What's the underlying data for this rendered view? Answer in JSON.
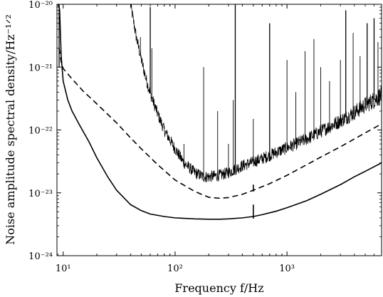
{
  "chart_data": {
    "type": "line",
    "title": "",
    "xlabel": "Frequency f/Hz",
    "ylabel": "Noise amplitude spectral density/Hz⁻¹ᐟ²",
    "xscale": "log",
    "yscale": "log",
    "xlim": [
      8.8,
      7000
    ],
    "ylim": [
      1e-24,
      1e-20
    ],
    "grid": false,
    "legend": "none",
    "x_ticks": [
      {
        "value": 10,
        "label": "10¹"
      },
      {
        "value": 100,
        "label": "10²"
      },
      {
        "value": 1000,
        "label": "10³"
      }
    ],
    "y_ticks": [
      {
        "value": 1e-24,
        "label": "10⁻²⁴"
      },
      {
        "value": 1e-23,
        "label": "10⁻²³"
      },
      {
        "value": 1e-22,
        "label": "10⁻²²"
      },
      {
        "value": 1e-21,
        "label": "10⁻²¹"
      },
      {
        "value": 1e-20,
        "label": "10⁻²⁰"
      }
    ],
    "series": [
      {
        "style": "solid",
        "color": "#000000",
        "x": [
          9.0,
          9.3,
          9.6,
          10,
          11,
          12,
          14,
          17,
          20,
          25,
          30,
          40,
          50,
          60,
          80,
          100,
          150,
          200,
          250,
          300,
          400,
          500,
          600,
          800,
          1000,
          1500,
          2000,
          3000,
          4000,
          5000,
          7000
        ],
        "y": [
          1.2e-20,
          8e-21,
          1.5e-21,
          6e-22,
          3e-22,
          2e-22,
          1.2e-22,
          6.5e-23,
          3.6e-23,
          1.8e-23,
          1.1e-23,
          6.5e-24,
          5.2e-24,
          4.6e-24,
          4.2e-24,
          4e-24,
          3.85e-24,
          3.8e-24,
          3.8e-24,
          3.85e-24,
          4e-24,
          4.2e-24,
          4.5e-24,
          5.1e-24,
          5.8e-24,
          7.5e-24,
          9.5e-24,
          1.35e-23,
          1.8e-23,
          2.2e-23,
          3e-23
        ]
      },
      {
        "style": "dashed",
        "color": "#000000",
        "x": [
          9.2,
          9.6,
          10,
          12,
          15,
          20,
          30,
          40,
          50,
          70,
          100,
          150,
          200,
          250,
          300,
          400,
          500,
          700,
          1000,
          1500,
          2000,
          3000,
          4000,
          5000,
          7000
        ],
        "y": [
          2e-21,
          1.2e-21,
          9.5e-22,
          6.5e-22,
          4.2e-22,
          2.6e-22,
          1.3e-22,
          7.5e-23,
          5e-23,
          2.8e-23,
          1.6e-23,
          1.05e-23,
          8.5e-24,
          8.2e-24,
          8.4e-24,
          9.5e-24,
          1.1e-23,
          1.4e-23,
          1.9e-23,
          2.8e-23,
          3.7e-23,
          5.4e-23,
          7.2e-23,
          9e-23,
          1.25e-22
        ]
      },
      {
        "style": "solid-noisy",
        "color": "#000000",
        "x": [
          40,
          45,
          50,
          55,
          60,
          70,
          80,
          100,
          120,
          150,
          180,
          200,
          250,
          300,
          350,
          400,
          500,
          600,
          800,
          1000,
          1500,
          2000,
          3000,
          4000,
          5000,
          6000,
          7000
        ],
        "y": [
          1e-20,
          3e-21,
          1.3e-21,
          6.5e-22,
          3.8e-22,
          1.8e-22,
          1e-22,
          5e-23,
          3e-23,
          2.1e-23,
          1.8e-23,
          1.8e-23,
          1.9e-23,
          2.1e-23,
          2.4e-23,
          2.7e-23,
          3.1e-23,
          3.5e-23,
          4.4e-23,
          5.2e-23,
          7.2e-23,
          9.5e-23,
          1.4e-22,
          1.9e-22,
          2.5e-22,
          3e-22,
          3.6e-22
        ]
      }
    ],
    "spikes": [
      {
        "f": 9.2,
        "base": 1e-21,
        "peak": 1e-20
      },
      {
        "f": 49,
        "base": 1.5e-21,
        "peak": 3e-21
      },
      {
        "f": 60,
        "base": 3.8e-22,
        "peak": 9e-21
      },
      {
        "f": 62,
        "base": 3.5e-22,
        "peak": 2e-21
      },
      {
        "f": 120,
        "base": 3e-23,
        "peak": 6e-23
      },
      {
        "f": 180,
        "base": 1.8e-23,
        "peak": 1e-21
      },
      {
        "f": 240,
        "base": 1.9e-23,
        "peak": 2e-22
      },
      {
        "f": 300,
        "base": 2.1e-23,
        "peak": 6e-23
      },
      {
        "f": 331,
        "base": 2.3e-23,
        "peak": 3e-22
      },
      {
        "f": 345,
        "base": 2.4e-23,
        "peak": 1e-20
      },
      {
        "f": 500,
        "base": 3.1e-23,
        "peak": 1.5e-22
      },
      {
        "f": 700,
        "base": 3.9e-23,
        "peak": 5e-21
      },
      {
        "f": 1000,
        "base": 5.2e-23,
        "peak": 1.3e-21
      },
      {
        "f": 1200,
        "base": 6e-23,
        "peak": 4e-22
      },
      {
        "f": 1450,
        "base": 7e-23,
        "peak": 1.8e-21
      },
      {
        "f": 1740,
        "base": 8.5e-23,
        "peak": 2.8e-21
      },
      {
        "f": 2000,
        "base": 9.5e-23,
        "peak": 1e-21
      },
      {
        "f": 2400,
        "base": 1.1e-22,
        "peak": 6e-22
      },
      {
        "f": 3000,
        "base": 1.4e-22,
        "peak": 1.3e-21
      },
      {
        "f": 3350,
        "base": 1.6e-22,
        "peak": 8e-21
      },
      {
        "f": 3900,
        "base": 1.8e-22,
        "peak": 3.5e-21
      },
      {
        "f": 4500,
        "base": 2.2e-22,
        "peak": 1.5e-21
      },
      {
        "f": 5200,
        "base": 2.5e-22,
        "peak": 5e-21
      },
      {
        "f": 6000,
        "base": 3e-22,
        "peak": 6e-21
      },
      {
        "f": 6500,
        "base": 3.2e-22,
        "peak": 2.5e-21
      }
    ],
    "small_spikes": [
      {
        "f": 500,
        "base": 3.9e-24,
        "peak": 6.5e-24,
        "series": "solid"
      },
      {
        "f": 500,
        "base": 1.05e-23,
        "peak": 1.35e-23,
        "series": "dashed"
      }
    ]
  }
}
